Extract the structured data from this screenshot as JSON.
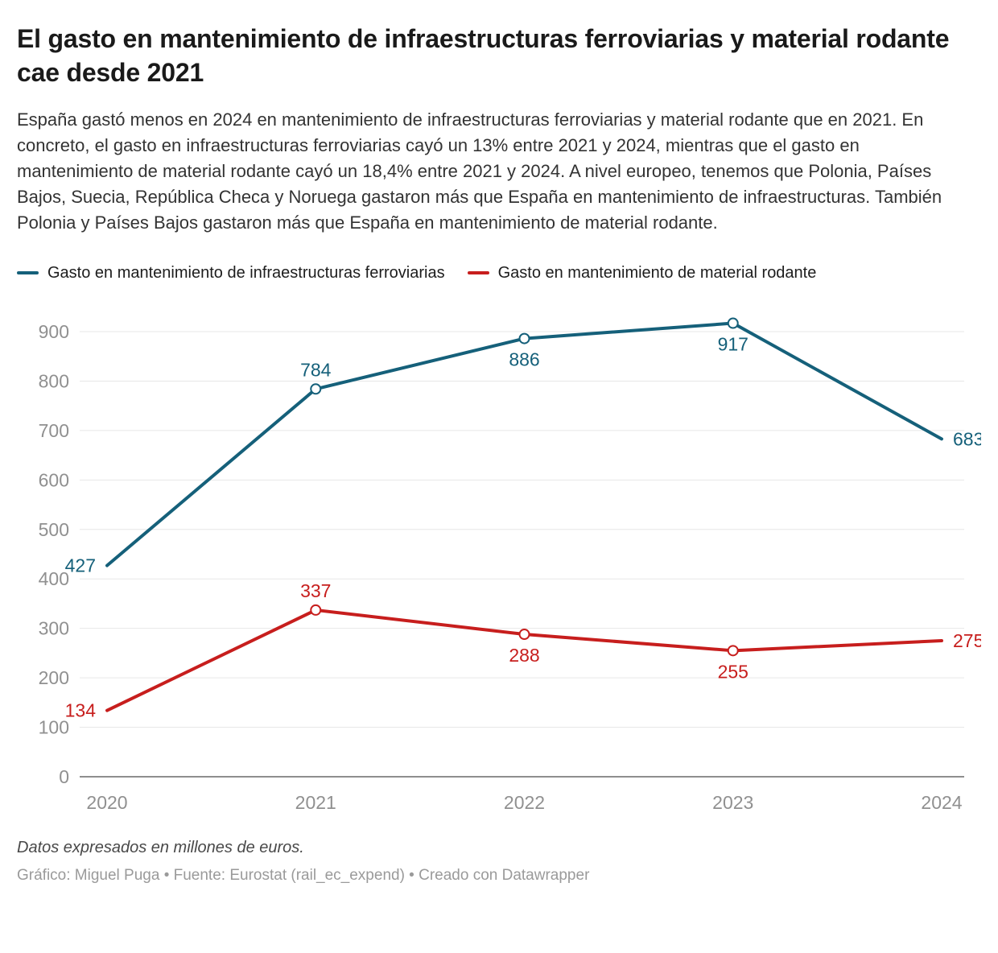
{
  "header": {
    "title": "El gasto en mantenimiento de infraestructuras ferroviarias y material rodante cae desde 2021",
    "description": "España gastó menos en 2024 en mantenimiento de infraestructuras ferroviarias y material rodante que en 2021. En concreto, el gasto en infraestructuras ferroviarias cayó un 13% entre 2021 y 2024, mientras que el gasto en mantenimiento de material rodante cayó un 18,4% entre 2021 y 2024. A nivel europeo, tenemos que Polonia, Países Bajos, Suecia, República Checa y Noruega gastaron más que España en mantenimiento de infraestructuras. También Polonia y Países Bajos gastaron más que España en mantenimiento de material rodante."
  },
  "legend": {
    "items": [
      {
        "label": "Gasto en mantenimiento de infraestructuras ferroviarias",
        "color": "#15607a"
      },
      {
        "label": "Gasto en mantenimiento de material rodante",
        "color": "#c71e1d"
      }
    ]
  },
  "chart_data": {
    "type": "line",
    "x": [
      "2020",
      "2021",
      "2022",
      "2023",
      "2024"
    ],
    "series": [
      {
        "name": "Gasto en mantenimiento de infraestructuras ferroviarias",
        "color": "#15607a",
        "values": [
          427,
          784,
          886,
          917,
          683
        ],
        "label_positions": [
          "left",
          "above",
          "below",
          "below",
          "right"
        ]
      },
      {
        "name": "Gasto en mantenimiento de material rodante",
        "color": "#c71e1d",
        "values": [
          134,
          337,
          288,
          255,
          275
        ],
        "label_positions": [
          "left",
          "above",
          "below",
          "below",
          "right"
        ]
      }
    ],
    "ylim": [
      0,
      900
    ],
    "ytick_interval": 100,
    "grid": true,
    "legend_position": "top",
    "colors": {
      "grid": "#e7e7e7",
      "axis": "#1d1d1d",
      "tick_label": "#909090"
    }
  },
  "footer": {
    "note": "Datos expresados en millones de euros.",
    "byline": "Gráfico: Miguel Puga • Fuente: Eurostat (rail_ec_expend) • Creado con Datawrapper"
  }
}
